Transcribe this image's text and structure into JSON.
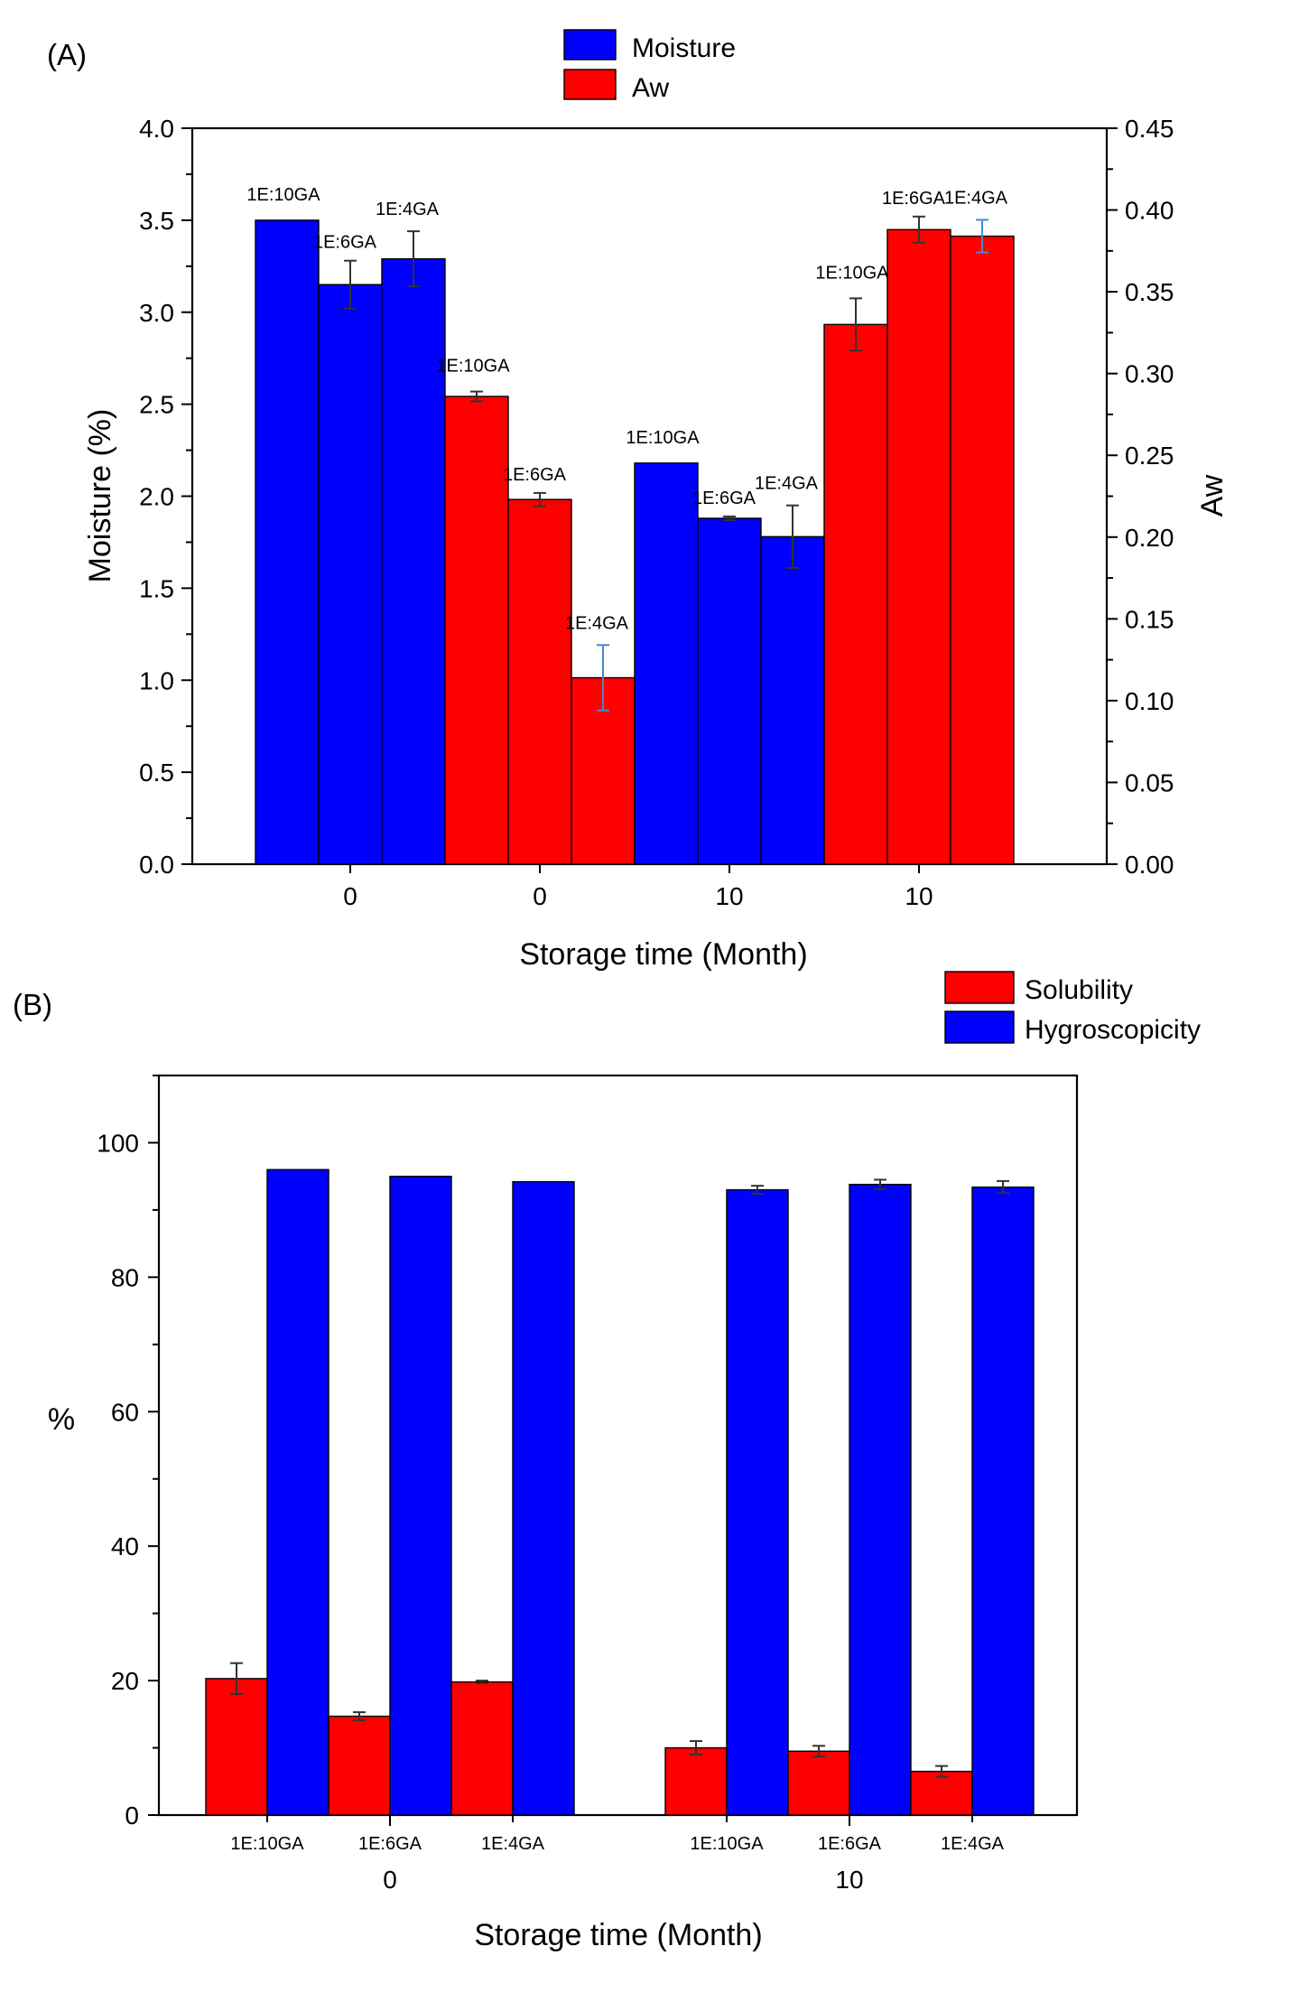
{
  "colors": {
    "blue": "#0000ff",
    "red": "#ff0000",
    "error_dark": "#333333",
    "error_light": "#4a86c8"
  },
  "chart_data": [
    {
      "panel": "(A)",
      "type": "bar",
      "xlabel": "Storage time (Month)",
      "ylabel_left": "Moisture (%)",
      "ylabel_right": "Aw",
      "ylim_left": [
        0,
        4.0
      ],
      "ylim_right": [
        0,
        0.45
      ],
      "yticks_left": [
        "0.0",
        "0.5",
        "1.0",
        "1.5",
        "2.0",
        "2.5",
        "3.0",
        "3.5",
        "4.0"
      ],
      "yticks_right": [
        "0.00",
        "0.05",
        "0.10",
        "0.15",
        "0.20",
        "0.25",
        "0.30",
        "0.35",
        "0.40",
        "0.45"
      ],
      "legend": [
        {
          "label": "Moisture",
          "color": "#0000ff"
        },
        {
          "label": "Aw",
          "color": "#ff0000"
        }
      ],
      "legend_position": "top-center",
      "groups": [
        {
          "category": "0",
          "series": "Moisture",
          "axis": "left",
          "color": "#0000ff",
          "bars": [
            {
              "label": "1E:10GA",
              "value": 3.5,
              "error": 0
            },
            {
              "label": "1E:6GA",
              "value": 3.15,
              "error": 0.13
            },
            {
              "label": "1E:4GA",
              "value": 3.29,
              "error": 0.15
            }
          ]
        },
        {
          "category": "0",
          "series": "Aw",
          "axis": "right",
          "color": "#ff0000",
          "bars": [
            {
              "label": "1E:10GA",
              "value": 0.286,
              "error": 0.003
            },
            {
              "label": "1E:6GA",
              "value": 0.223,
              "error": 0.004
            },
            {
              "label": "1E:4GA",
              "value": 0.114,
              "error": 0.02
            }
          ]
        },
        {
          "category": "10",
          "series": "Moisture",
          "axis": "left",
          "color": "#0000ff",
          "bars": [
            {
              "label": "1E:10GA",
              "value": 2.18,
              "error": 0
            },
            {
              "label": "1E:6GA",
              "value": 1.88,
              "error": 0.01
            },
            {
              "label": "1E:4GA",
              "value": 1.78,
              "error": 0.17
            }
          ]
        },
        {
          "category": "10",
          "series": "Aw",
          "axis": "right",
          "color": "#ff0000",
          "bars": [
            {
              "label": "1E:10GA",
              "value": 0.33,
              "error": 0.016
            },
            {
              "label": "1E:6GA",
              "value": 0.388,
              "error": 0.008
            },
            {
              "label": "1E:4GA",
              "value": 0.384,
              "error": 0.01
            }
          ]
        }
      ]
    },
    {
      "panel": "(B)",
      "type": "bar",
      "xlabel": "Storage time (Month)",
      "ylabel": "%",
      "ylim": [
        0,
        110
      ],
      "yticks": [
        "0",
        "20",
        "40",
        "60",
        "80",
        "100"
      ],
      "legend": [
        {
          "label": "Solubility",
          "color": "#ff0000"
        },
        {
          "label": "Hygroscopicity",
          "color": "#0000ff"
        }
      ],
      "legend_position": "top-right",
      "series": [
        {
          "name": "Solubility",
          "color": "#ff0000"
        },
        {
          "name": "Hygroscopicity",
          "color": "#0000ff"
        }
      ],
      "groups": [
        {
          "category": "0",
          "samples": [
            {
              "label": "1E:10GA",
              "Solubility": 20.3,
              "Solubility_error": 2.3,
              "Hygroscopicity": 96.0,
              "Hygroscopicity_error": 0
            },
            {
              "label": "1E:6GA",
              "Solubility": 14.7,
              "Solubility_error": 0.6,
              "Hygroscopicity": 95.0,
              "Hygroscopicity_error": 0
            },
            {
              "label": "1E:4GA",
              "Solubility": 19.8,
              "Solubility_error": 0.2,
              "Hygroscopicity": 94.2,
              "Hygroscopicity_error": 0
            }
          ]
        },
        {
          "category": "10",
          "samples": [
            {
              "label": "1E:10GA",
              "Solubility": 10.0,
              "Solubility_error": 1.0,
              "Hygroscopicity": 93.0,
              "Hygroscopicity_error": 0.6
            },
            {
              "label": "1E:6GA",
              "Solubility": 9.5,
              "Solubility_error": 0.8,
              "Hygroscopicity": 93.8,
              "Hygroscopicity_error": 0.7
            },
            {
              "label": "1E:4GA",
              "Solubility": 6.5,
              "Solubility_error": 0.8,
              "Hygroscopicity": 93.4,
              "Hygroscopicity_error": 0.9
            }
          ]
        }
      ]
    }
  ]
}
